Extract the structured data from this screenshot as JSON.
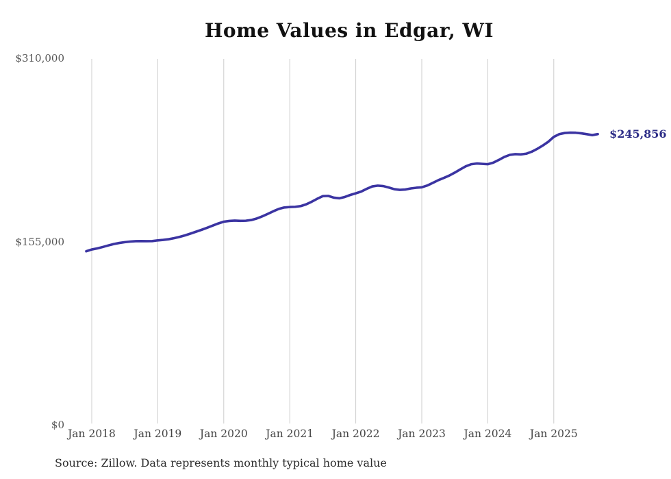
{
  "title": "Home Values in Edgar, WI",
  "source_note": "Source: Zillow. Data represents monthly typical home value",
  "end_value_label": "$245,856",
  "colors": {
    "line": "#3b34a2",
    "end_label": "#2c2c87",
    "gridline": "#cccccc",
    "title": "#111111",
    "axis_text": "#4d4d4d",
    "background": "#ffffff"
  },
  "chart_data": {
    "type": "line",
    "title": "Home Values in Edgar, WI",
    "xlabel": "",
    "ylabel": "",
    "ylim": [
      0,
      310000
    ],
    "grid": "vertical-only",
    "legend": "none",
    "y_ticks": [
      {
        "label": "$310,000",
        "value": 310000
      },
      {
        "label": "$155,000",
        "value": 155000
      },
      {
        "label": "$0",
        "value": 0
      }
    ],
    "x_ticks": [
      "Jan 2018",
      "Jan 2019",
      "Jan 2020",
      "Jan 2021",
      "Jan 2022",
      "Jan 2023",
      "Jan 2024",
      "Jan 2025"
    ],
    "x_tick_interval_months": 12,
    "start_month": "2017-12",
    "end_month": "2025-09",
    "start_month_offset": -1,
    "final_value": 245856,
    "final_value_label": "$245,856",
    "series": [
      {
        "name": "Typical home value",
        "values": [
          146800,
          148300,
          149200,
          150400,
          151700,
          152900,
          153800,
          154500,
          155000,
          155300,
          155400,
          155300,
          155400,
          156000,
          156400,
          157000,
          157900,
          159000,
          160300,
          161800,
          163400,
          165000,
          166700,
          168500,
          170300,
          171800,
          172400,
          172700,
          172500,
          172600,
          173200,
          174500,
          176300,
          178400,
          180600,
          182600,
          183800,
          184200,
          184400,
          185000,
          186500,
          188700,
          191200,
          193400,
          193600,
          192100,
          191600,
          192700,
          194400,
          195800,
          197300,
          199600,
          201600,
          202300,
          201900,
          200700,
          199300,
          198700,
          199000,
          199900,
          200500,
          200900,
          202400,
          204600,
          206900,
          208800,
          210800,
          213300,
          216000,
          218600,
          220400,
          221000,
          220700,
          220400,
          221700,
          224000,
          226500,
          228300,
          228900,
          228700,
          229300,
          231000,
          233400,
          236200,
          239400,
          243500,
          245800,
          246800,
          247100,
          247000,
          246500,
          245800,
          245000,
          245856
        ]
      }
    ]
  }
}
